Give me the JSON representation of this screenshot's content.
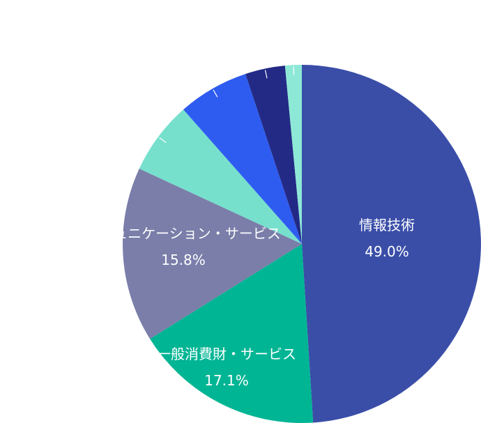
{
  "chart_data": {
    "type": "pie",
    "title": "",
    "slices": [
      {
        "name": "情報技術",
        "value": 49.0,
        "label": "49.0%",
        "color": "#3a4ea8",
        "show_label": true
      },
      {
        "name": "一般消費財・サービス",
        "value": 17.1,
        "label": "17.1%",
        "color": "#00b594",
        "show_label": true
      },
      {
        "name": "コミュニケーション・サービス",
        "value": 15.8,
        "label": "15.8%",
        "color": "#7a7ea9",
        "show_label": true
      },
      {
        "name": "",
        "value": 6.6,
        "label": "",
        "color": "#76e0cd",
        "show_label": false
      },
      {
        "name": "",
        "value": 6.4,
        "label": "",
        "color": "#2f5cf0",
        "show_label": false
      },
      {
        "name": "",
        "value": 3.6,
        "label": "",
        "color": "#232a86",
        "show_label": false
      },
      {
        "name": "",
        "value": 1.5,
        "label": "",
        "color": "#8ee8d6",
        "show_label": false
      }
    ]
  }
}
